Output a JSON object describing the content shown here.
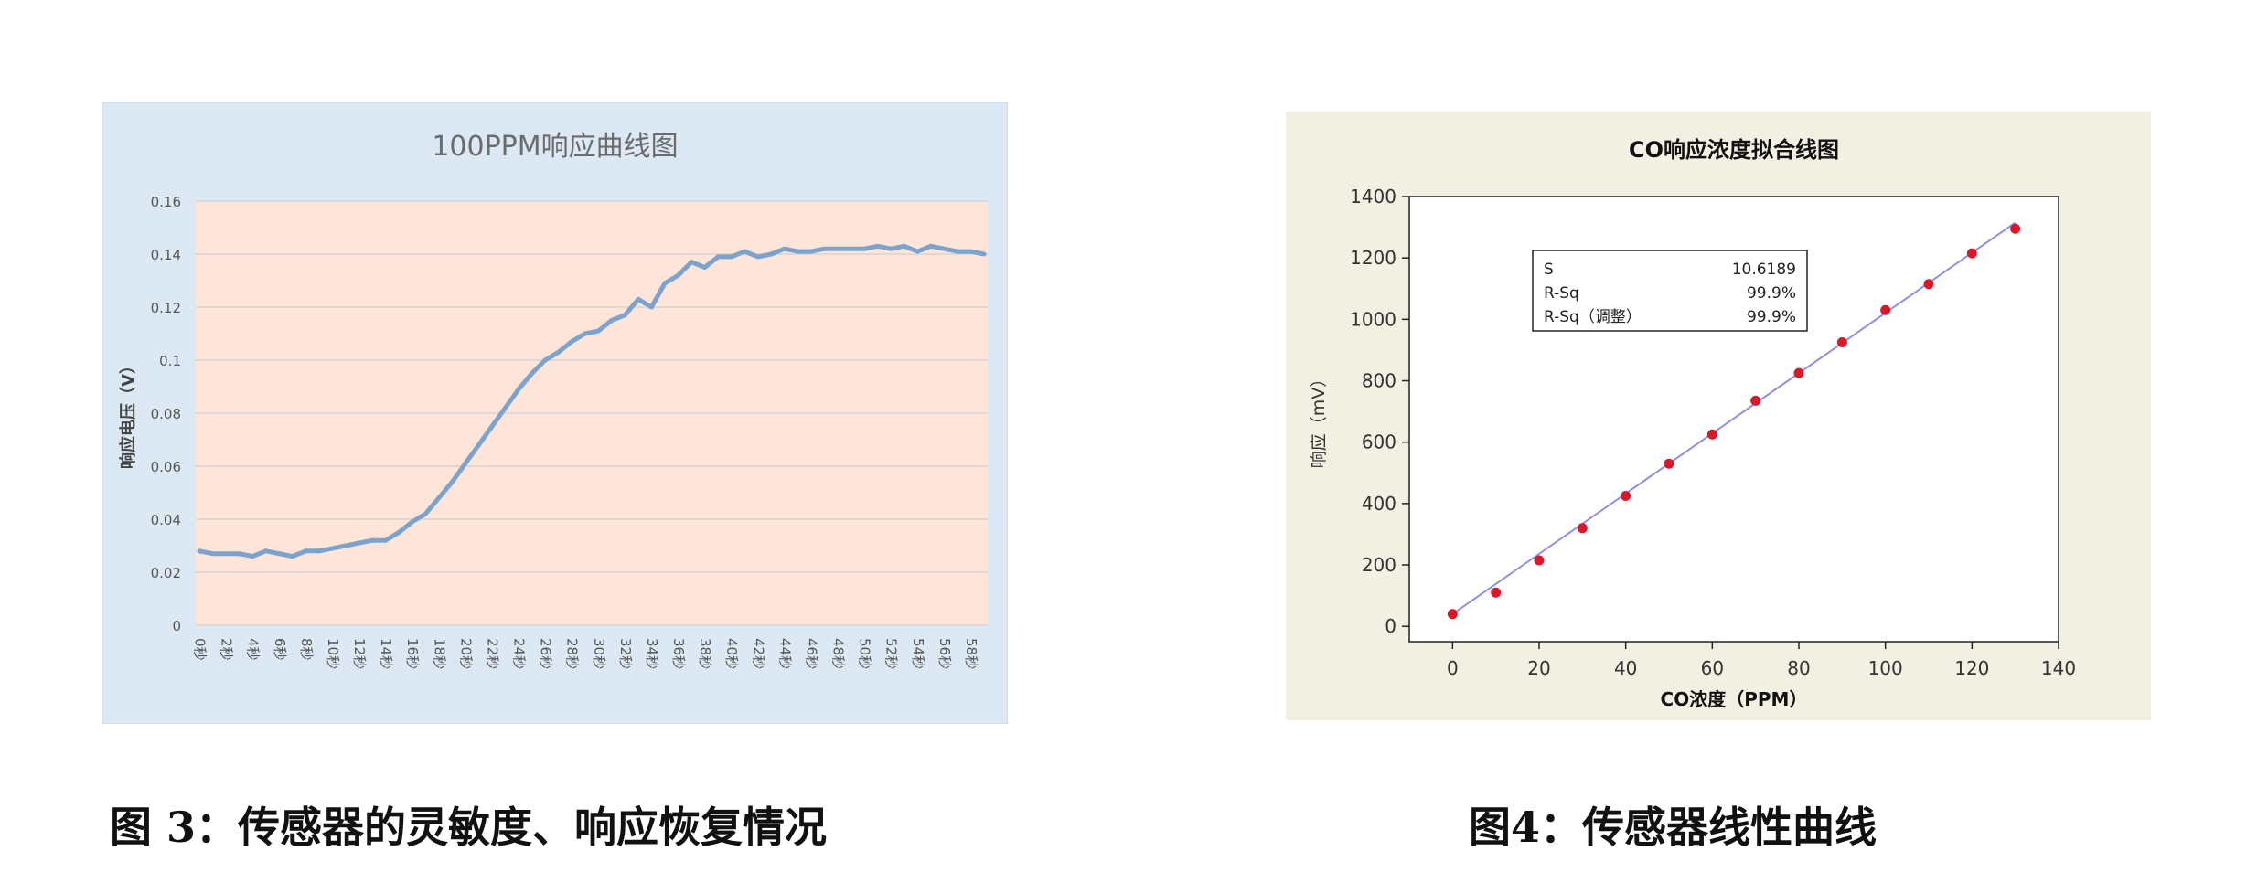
{
  "chart_data": [
    {
      "type": "line",
      "title": "100PPM响应曲线图",
      "xlabel": "",
      "ylabel": "响应电压（V）",
      "ylim": [
        0,
        0.16
      ],
      "yticks": [
        "0",
        "0.02",
        "0.04",
        "0.06",
        "0.08",
        "0.1",
        "0.12",
        "0.14",
        "0.16"
      ],
      "categories": [
        "0秒",
        "2秒",
        "4秒",
        "6秒",
        "8秒",
        "10秒",
        "12秒",
        "14秒",
        "16秒",
        "18秒",
        "20秒",
        "22秒",
        "24秒",
        "26秒",
        "28秒",
        "30秒",
        "32秒",
        "34秒",
        "36秒",
        "38秒",
        "40秒",
        "42秒",
        "44秒",
        "46秒",
        "48秒",
        "50秒",
        "52秒",
        "54秒",
        "56秒",
        "58秒"
      ],
      "x": [
        0,
        1,
        2,
        3,
        4,
        5,
        6,
        7,
        8,
        9,
        10,
        11,
        12,
        13,
        14,
        15,
        16,
        17,
        18,
        19,
        20,
        21,
        22,
        23,
        24,
        25,
        26,
        27,
        28,
        29,
        30,
        31,
        32,
        33,
        34,
        35,
        36,
        37,
        38,
        39,
        40,
        41,
        42,
        43,
        44,
        45,
        46,
        47,
        48,
        49,
        50,
        51,
        52,
        53,
        54,
        55,
        56,
        57,
        58,
        59
      ],
      "values": [
        0.028,
        0.027,
        0.027,
        0.027,
        0.026,
        0.028,
        0.027,
        0.026,
        0.028,
        0.028,
        0.029,
        0.03,
        0.031,
        0.032,
        0.032,
        0.035,
        0.039,
        0.042,
        0.048,
        0.054,
        0.061,
        0.068,
        0.075,
        0.082,
        0.089,
        0.095,
        0.1,
        0.103,
        0.107,
        0.11,
        0.111,
        0.115,
        0.117,
        0.123,
        0.12,
        0.129,
        0.132,
        0.137,
        0.135,
        0.139,
        0.139,
        0.141,
        0.139,
        0.14,
        0.142,
        0.141,
        0.141,
        0.142,
        0.142,
        0.142,
        0.142,
        0.143,
        0.142,
        0.143,
        0.141,
        0.143,
        0.142,
        0.141,
        0.141,
        0.14
      ],
      "grid": true,
      "colors": {
        "line": "#7ba3cd",
        "plot_bg": "#fde5d9",
        "outer_bg": "#dce8f4",
        "grid": "#c9c9c9"
      }
    },
    {
      "type": "scatter",
      "title": "CO响应浓度拟合线图",
      "xlabel": "CO浓度（PPM）",
      "ylabel": "响应（mV）",
      "xlim": [
        -10,
        140
      ],
      "ylim": [
        -50,
        1400
      ],
      "xticks": [
        0,
        20,
        40,
        60,
        80,
        100,
        120,
        140
      ],
      "yticks": [
        0,
        200,
        400,
        600,
        800,
        1000,
        1200,
        1400
      ],
      "x": [
        0,
        10,
        20,
        30,
        40,
        50,
        60,
        70,
        80,
        90,
        100,
        110,
        120,
        130
      ],
      "values": [
        40,
        110,
        215,
        320,
        425,
        530,
        625,
        735,
        825,
        925,
        1030,
        1115,
        1215,
        1295
      ],
      "fit_line": {
        "x": [
          0,
          130
        ],
        "y": [
          40,
          1315
        ]
      },
      "stats": [
        {
          "label": "S",
          "value": "10.6189"
        },
        {
          "label": "R-Sq",
          "value": "99.9%"
        },
        {
          "label": "R-Sq（调整）",
          "value": "99.9%"
        }
      ],
      "grid": false,
      "colors": {
        "points": "#d9182a",
        "fit": "#8f8fe0",
        "outer_bg": "#f2efe3"
      }
    }
  ],
  "captions": {
    "figure3": "图 3：传感器的灵敏度、响应恢复情况",
    "figure4": "图4：传感器线性曲线"
  }
}
